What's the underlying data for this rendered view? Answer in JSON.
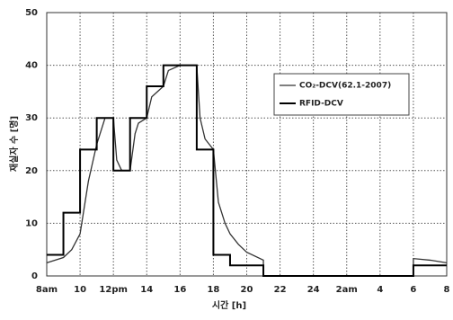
{
  "chart_data": {
    "type": "line",
    "xlabel": "시간 [h]",
    "ylabel": "재실자 수 [명]",
    "xlim": [
      8,
      32
    ],
    "xticks": [
      {
        "value": 8,
        "label": "8am"
      },
      10,
      {
        "value": 12,
        "label": "12pm"
      },
      14,
      16,
      18,
      20,
      22,
      24,
      {
        "value": 26,
        "label": "2am"
      },
      {
        "value": 28,
        "label": "4"
      },
      {
        "value": 30,
        "label": "6"
      },
      {
        "value": 32,
        "label": "8"
      }
    ],
    "ylim": [
      0,
      50
    ],
    "yticks": [
      0,
      10,
      20,
      30,
      40,
      50
    ],
    "grid": true,
    "legend": "right",
    "series": [
      {
        "name": "CO₂-DCV(62.1-2007)",
        "color": "#333333",
        "step": false,
        "x": [
          8,
          9,
          9.5,
          10,
          10.5,
          11,
          11.5,
          12,
          12.2,
          12.5,
          13,
          13.3,
          13.5,
          14,
          14.3,
          15,
          15.3,
          16,
          17,
          17.2,
          17.5,
          18,
          18.3,
          18.7,
          19,
          19.5,
          20,
          21,
          21,
          30,
          30,
          31,
          32
        ],
        "values": [
          2.5,
          3.5,
          5,
          8,
          18,
          25,
          30,
          30,
          22,
          20,
          20,
          27,
          29,
          30,
          34,
          36,
          39,
          40,
          40,
          30,
          26,
          24,
          14,
          10,
          8,
          6,
          4.5,
          3,
          0,
          0,
          3.3,
          3,
          2.5
        ]
      },
      {
        "name": "RFID-DCV",
        "color": "#000000",
        "step": true,
        "x": [
          8,
          9,
          10,
          11,
          12,
          13,
          14,
          15,
          17,
          18,
          19,
          21,
          30,
          32
        ],
        "values": [
          4,
          12,
          24,
          30,
          20,
          30,
          36,
          40,
          24,
          4,
          2,
          0,
          2,
          2
        ]
      }
    ]
  }
}
